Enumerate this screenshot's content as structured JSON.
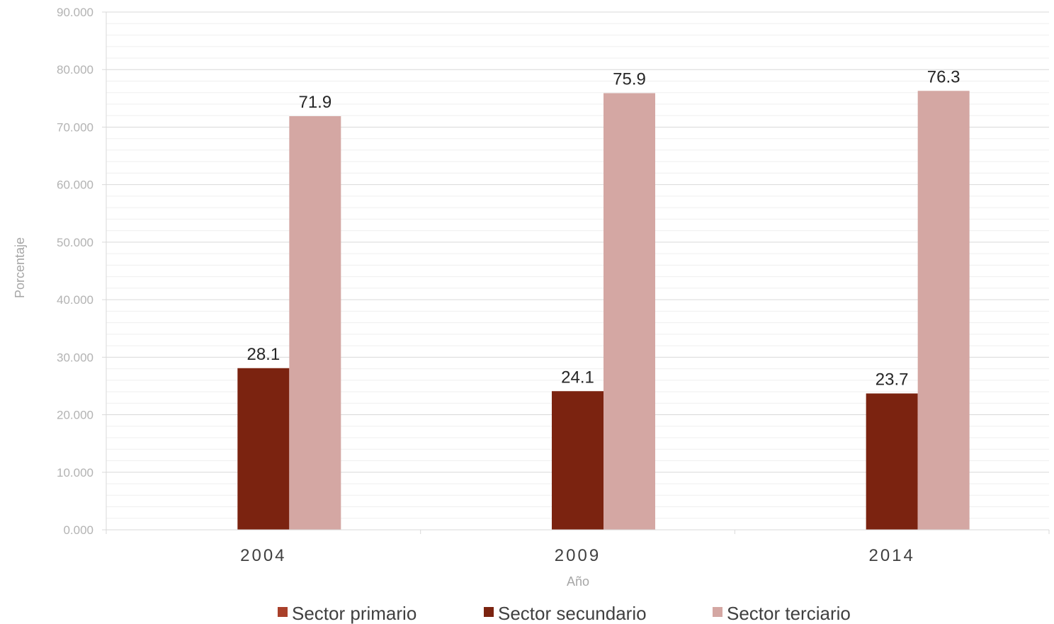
{
  "chart_data": {
    "type": "bar",
    "categories": [
      "2004",
      "2009",
      "2014"
    ],
    "series": [
      {
        "name": "Sector primario",
        "values": [
          null,
          null,
          null
        ],
        "color": "#a9402a"
      },
      {
        "name": "Sector secundario",
        "values": [
          28.1,
          24.1,
          23.7
        ],
        "color": "#7b2310"
      },
      {
        "name": "Sector terciario",
        "values": [
          71.9,
          75.9,
          76.3
        ],
        "color": "#d4a7a3"
      }
    ],
    "xlabel": "Año",
    "ylabel": "Porcentaje",
    "ylim": [
      0,
      90
    ],
    "y_ticks": [
      "0.000",
      "10.000",
      "20.000",
      "30.000",
      "40.000",
      "50.000",
      "60.000",
      "70.000",
      "80.000",
      "90.000"
    ],
    "grid": true,
    "minor_grid": true,
    "legend_position": "bottom"
  }
}
